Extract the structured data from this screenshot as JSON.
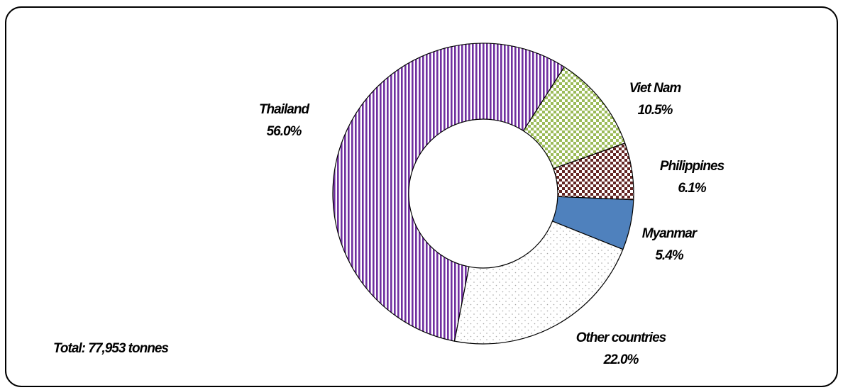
{
  "chart_data": {
    "type": "donut",
    "categories": [
      "Thailand",
      "Viet Nam",
      "Philippines",
      "Myanmar",
      "Other countries"
    ],
    "values": [
      56.0,
      10.5,
      6.1,
      5.4,
      22.0
    ],
    "value_labels": [
      "56.0%",
      "10.5%",
      "6.1%",
      "5.4%",
      "22.0%"
    ],
    "colors": [
      "#7030a0",
      "#9bbb59",
      "#632523",
      "#4f81bd",
      "#a6a6a6"
    ],
    "patterns": [
      "stripes",
      "checker",
      "checker",
      "solid",
      "dots"
    ],
    "annotation": "Total: 77,953 tonnes"
  }
}
